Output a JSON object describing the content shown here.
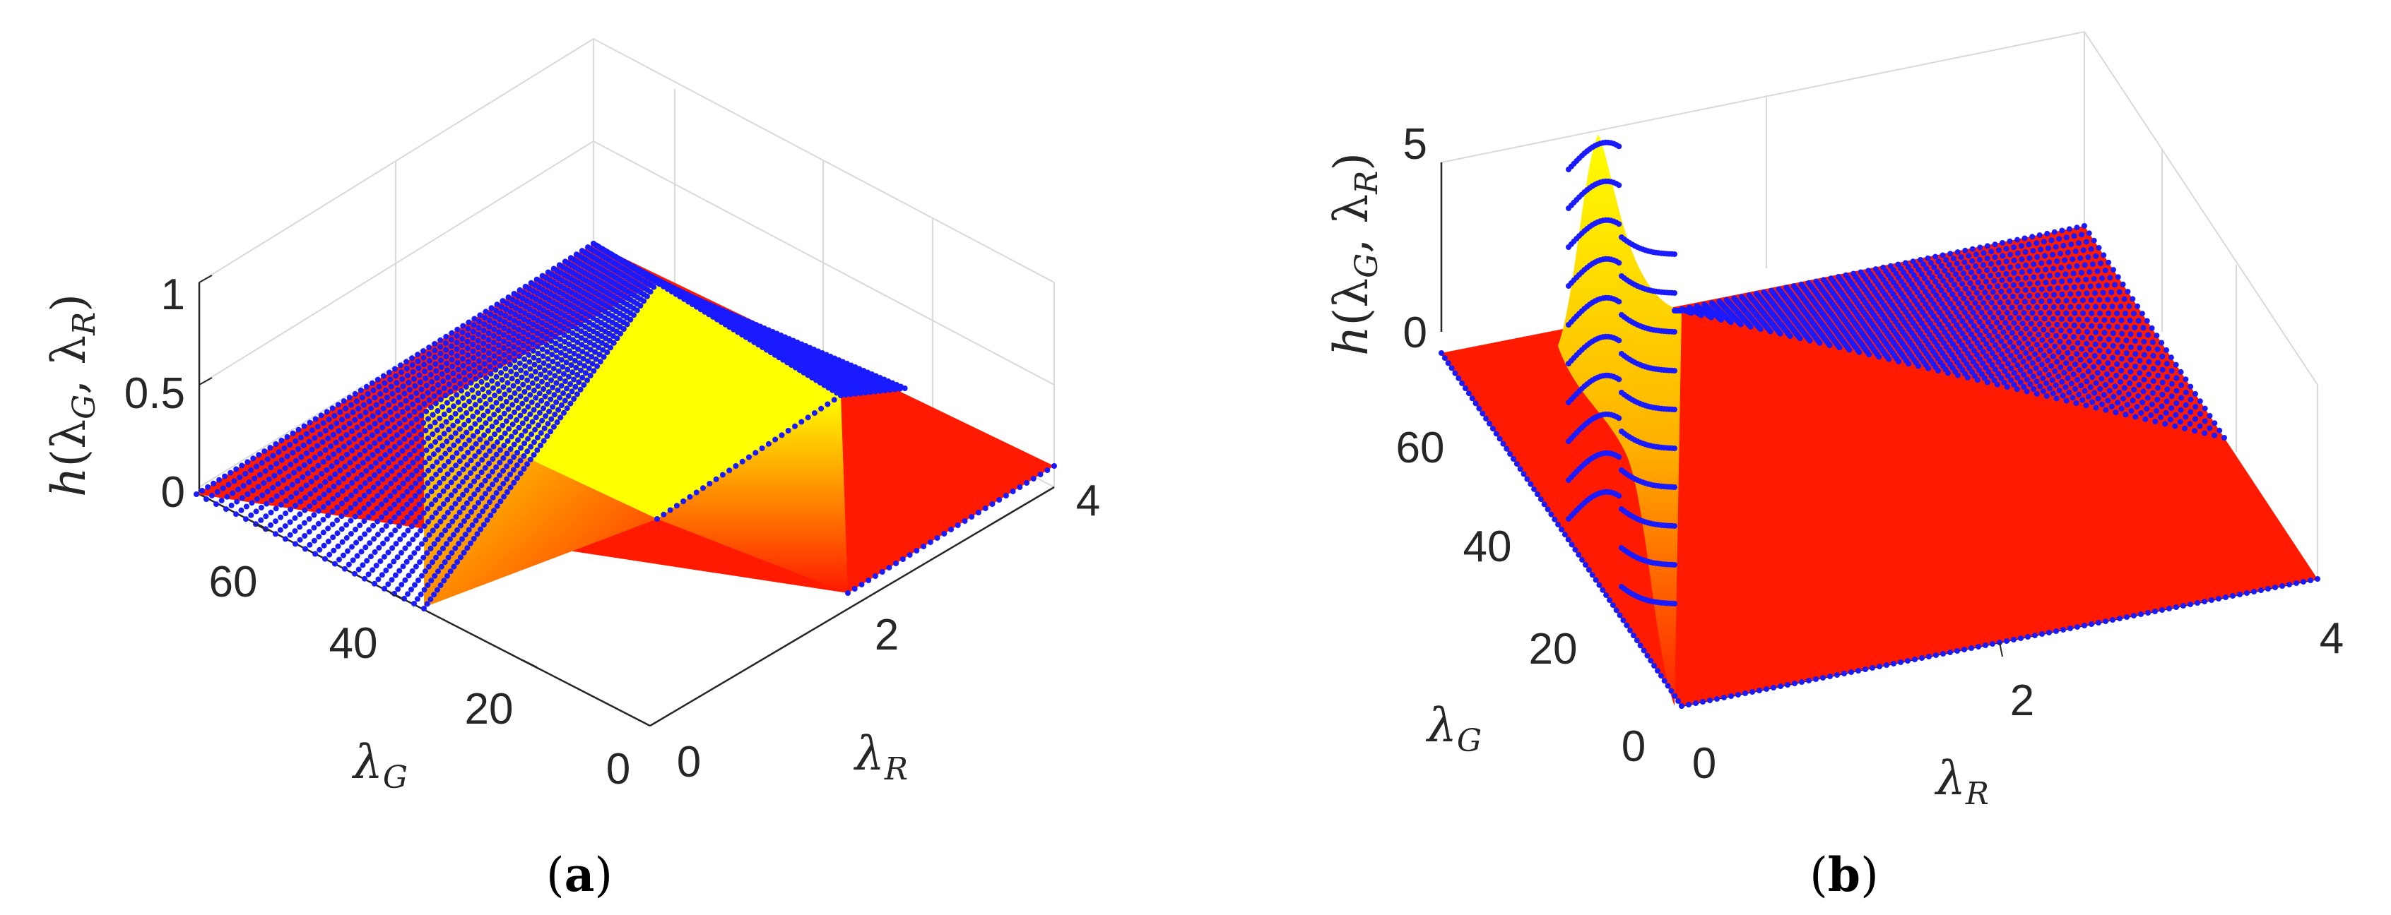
{
  "panels": [
    {
      "caption": "a",
      "chart_data": {
        "type": "surface3d",
        "zlabel": "h",
        "zlabel_args": [
          "G",
          "R"
        ],
        "xlabel": "λ",
        "xlabel_sub": "G",
        "ylabel": "λ",
        "ylabel_sub": "R",
        "xlim": [
          0,
          70
        ],
        "ylim": [
          0,
          4
        ],
        "zlim": [
          0,
          1
        ],
        "xticks": [
          "0",
          "20",
          "40",
          "60"
        ],
        "xtick_values": [
          0,
          20,
          40,
          60
        ],
        "yticks": [
          "0",
          "2",
          "4"
        ],
        "ytick_values": [
          0,
          2,
          4
        ],
        "zticks": [
          "0",
          "0.5",
          "1"
        ],
        "ztick_values": [
          0,
          0.5,
          1
        ],
        "description_values": {
          "step_height": 0.5,
          "step_lambdaG_range": [
            0,
            40
          ],
          "step_lambdaR_range": [
            0,
            2
          ]
        },
        "colors": {
          "low": "#ff0000",
          "high": "#ffff00",
          "mesh_points": "#1a1aff"
        }
      }
    },
    {
      "caption": "b",
      "chart_data": {
        "type": "surface3d",
        "zlabel": "h",
        "zlabel_args": [
          "G",
          "R"
        ],
        "xlabel": "λ",
        "xlabel_sub": "G",
        "ylabel": "λ",
        "ylabel_sub": "R",
        "xlim": [
          0,
          70
        ],
        "ylim": [
          0,
          4
        ],
        "zlim": [
          0,
          5
        ],
        "xticks": [
          "0",
          "20",
          "40",
          "60"
        ],
        "xtick_values": [
          0,
          20,
          40,
          60
        ],
        "yticks": [
          "0",
          "2",
          "4"
        ],
        "ytick_values": [
          0,
          2,
          4
        ],
        "zticks": [
          "0",
          "5"
        ],
        "ztick_values": [
          0,
          5
        ],
        "description_values": {
          "peak_height": 5,
          "peak_at_lambdaR": 0
        },
        "colors": {
          "low": "#ff0000",
          "high": "#ffff00",
          "mesh_points": "#1a1aff"
        }
      }
    }
  ]
}
